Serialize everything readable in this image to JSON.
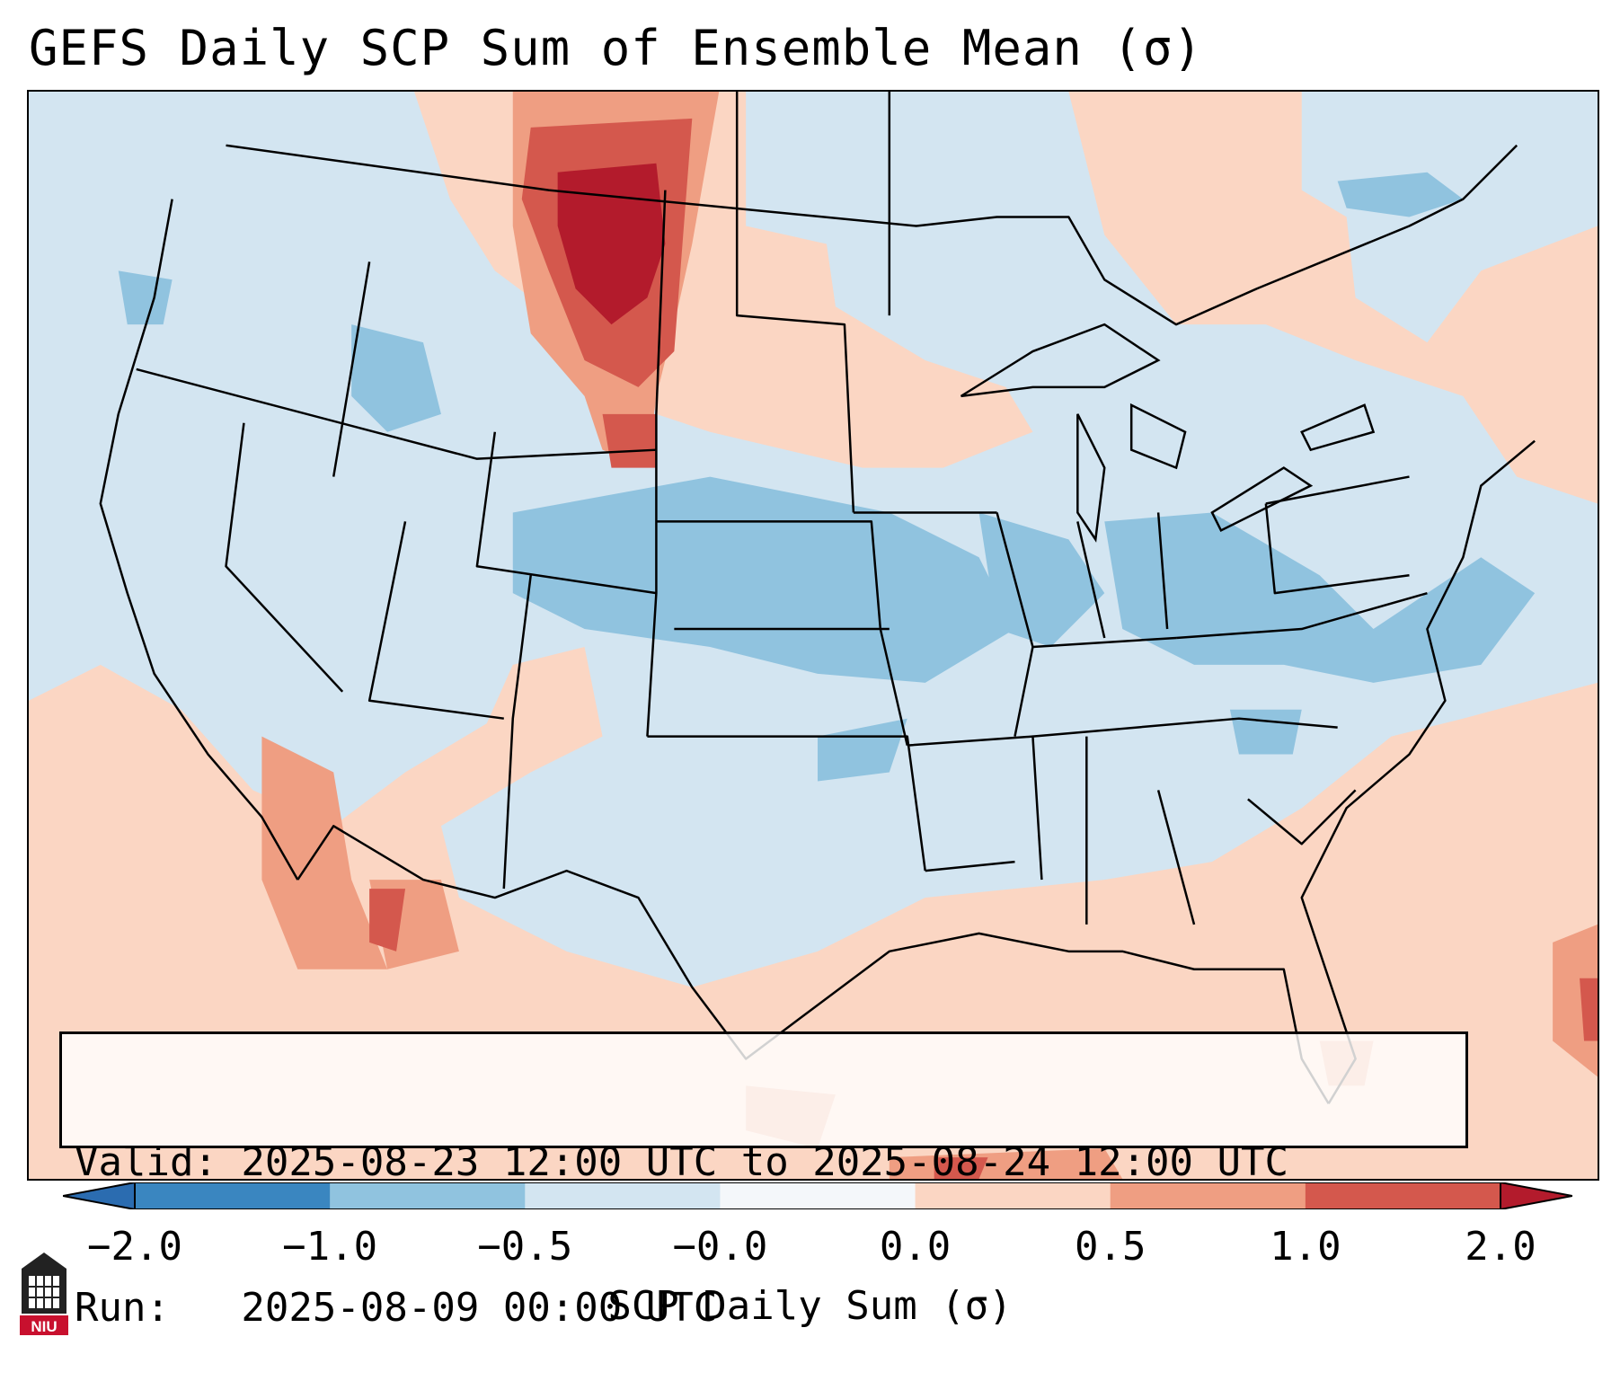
{
  "title": "GEFS Daily SCP Sum of Ensemble Mean (σ)",
  "info": {
    "valid_line": "Valid: 2025-08-23 12:00 UTC to 2025-08-24 12:00 UTC",
    "run_line": "Run:   2025-08-09 00:00 UTC"
  },
  "colorbar": {
    "label": "SCP Daily Sum (σ)",
    "ticks": [
      "−2.0",
      "−1.0",
      "−0.5",
      "−0.0",
      "0.0",
      "0.5",
      "1.0",
      "2.0"
    ],
    "bin_colors": [
      "#3a86c0",
      "#90c3df",
      "#d3e5f1",
      "#f4f7fa",
      "#fbd6c3",
      "#ef9e82",
      "#d4584d"
    ],
    "extend_low_color": "#2b6cb0",
    "extend_high_color": "#b31b2c"
  },
  "colors": {
    "background": "#d3e5f1",
    "neg_medium": "#90c3df",
    "pos_light": "#fbd6c3",
    "pos_medium": "#ef9e82",
    "pos_strong": "#d4584d",
    "pos_max": "#b31b2c",
    "border": "#000000"
  },
  "logo_text": "NIU"
}
